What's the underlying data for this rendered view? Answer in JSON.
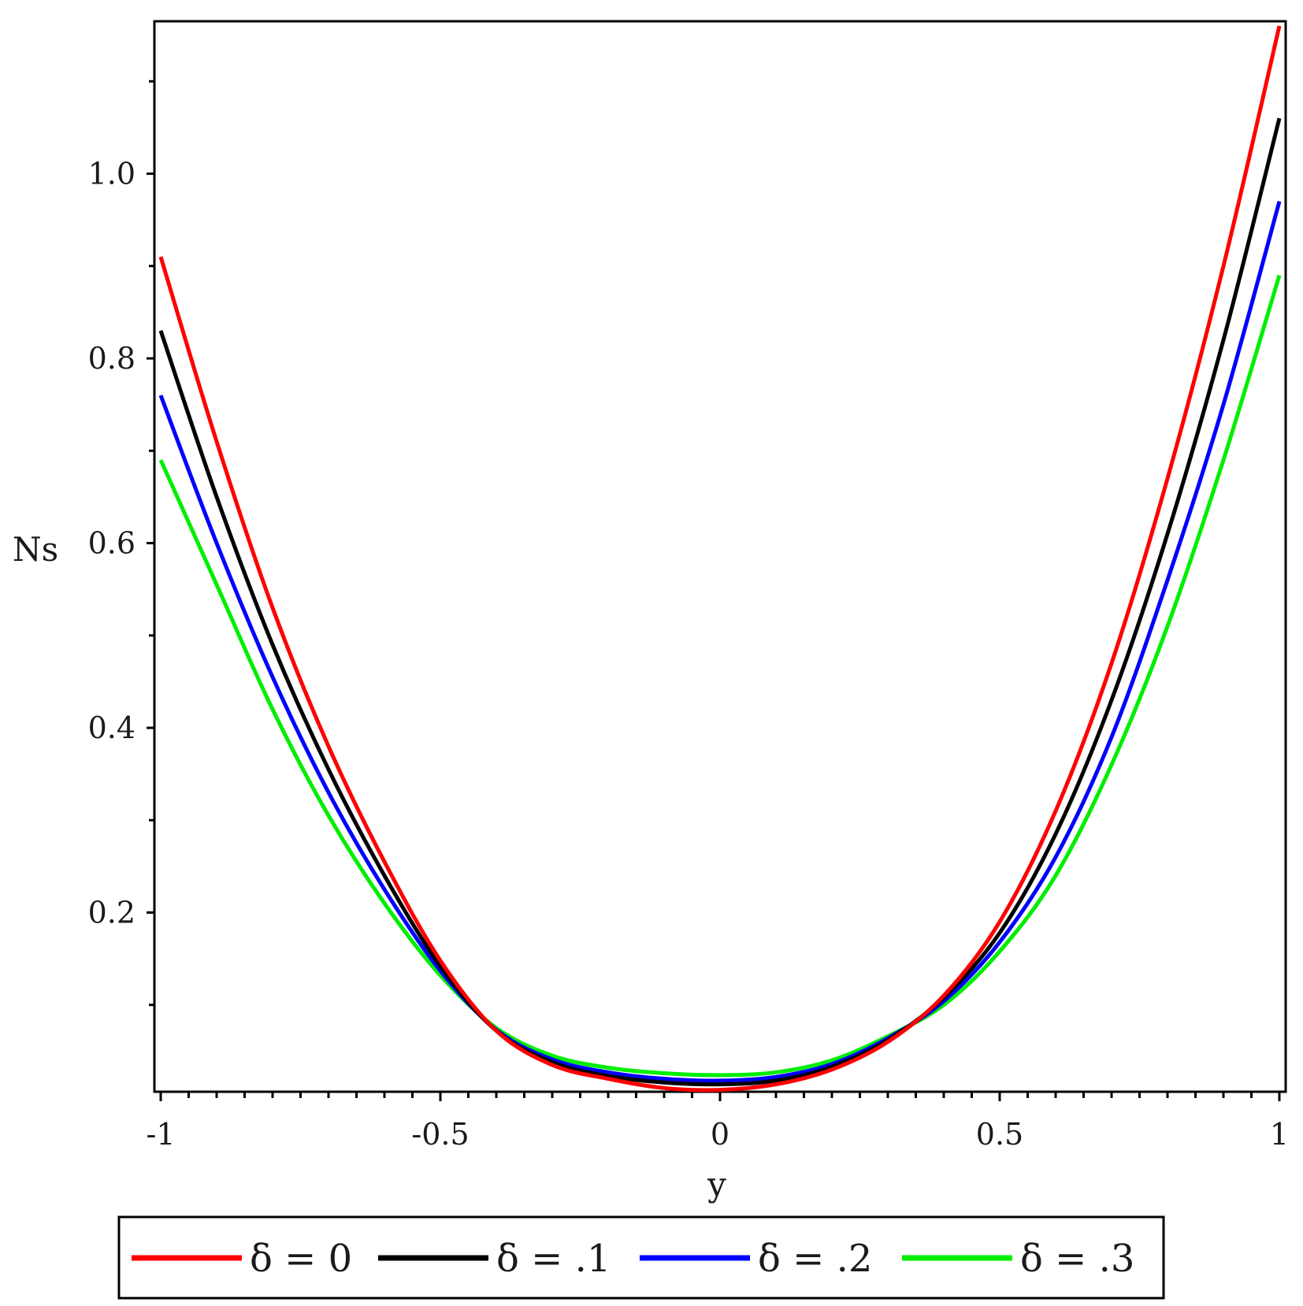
{
  "chart_data": {
    "type": "line",
    "title": "",
    "xlabel": "y",
    "ylabel": "Ns",
    "xlim": [
      -1,
      1
    ],
    "ylim": [
      0.0,
      1.15
    ],
    "x_ticks": [
      -1,
      -0.5,
      0,
      0.5,
      1
    ],
    "x_tick_labels": [
      "-1",
      "-0.5",
      "0",
      "0.5",
      "1"
    ],
    "y_ticks": [
      0.2,
      0.4,
      0.6,
      0.8,
      1.0
    ],
    "y_tick_labels": [
      "0.2",
      "0.4",
      "0.6",
      "0.8",
      "1.0"
    ],
    "grid": false,
    "legend_position": "bottom",
    "x": [
      -1.0,
      -0.9,
      -0.8,
      -0.7,
      -0.6,
      -0.5,
      -0.4,
      -0.3,
      -0.2,
      -0.1,
      0.0,
      0.1,
      0.2,
      0.3,
      0.4,
      0.5,
      0.6,
      0.7,
      0.8,
      0.9,
      1.0
    ],
    "series": [
      {
        "name": "δ = 0",
        "color": "#ff0000",
        "values": [
          0.91,
          0.71,
          0.53,
          0.38,
          0.255,
          0.148,
          0.072,
          0.035,
          0.02,
          0.01,
          0.008,
          0.014,
          0.03,
          0.06,
          0.11,
          0.19,
          0.31,
          0.47,
          0.67,
          0.9,
          1.16
        ]
      },
      {
        "name": "δ = .1",
        "color": "#000000",
        "values": [
          0.83,
          0.65,
          0.49,
          0.355,
          0.24,
          0.142,
          0.072,
          0.038,
          0.023,
          0.016,
          0.014,
          0.018,
          0.033,
          0.062,
          0.108,
          0.178,
          0.285,
          0.43,
          0.61,
          0.82,
          1.06
        ]
      },
      {
        "name": "δ = .2",
        "color": "#0000ff",
        "values": [
          0.76,
          0.6,
          0.455,
          0.33,
          0.225,
          0.137,
          0.073,
          0.041,
          0.027,
          0.02,
          0.018,
          0.022,
          0.036,
          0.064,
          0.104,
          0.168,
          0.26,
          0.39,
          0.56,
          0.75,
          0.97
        ]
      },
      {
        "name": "δ = .3",
        "color": "#00ee00",
        "values": [
          0.69,
          0.555,
          0.42,
          0.305,
          0.21,
          0.132,
          0.075,
          0.045,
          0.032,
          0.026,
          0.024,
          0.027,
          0.04,
          0.066,
          0.1,
          0.158,
          0.24,
          0.36,
          0.51,
          0.69,
          0.89
        ]
      }
    ]
  }
}
